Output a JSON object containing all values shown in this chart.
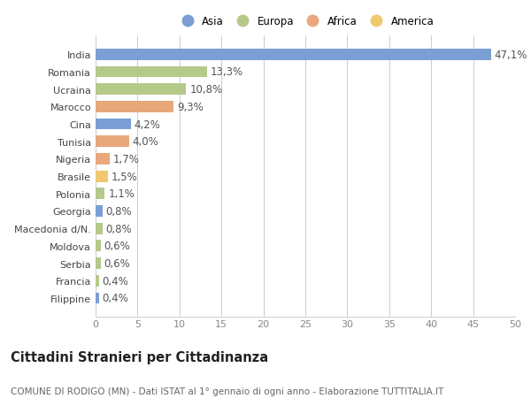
{
  "categories": [
    "India",
    "Romania",
    "Ucraina",
    "Marocco",
    "Cina",
    "Tunisia",
    "Nigeria",
    "Brasile",
    "Polonia",
    "Georgia",
    "Macedonia d/N.",
    "Moldova",
    "Serbia",
    "Francia",
    "Filippine"
  ],
  "values": [
    47.1,
    13.3,
    10.8,
    9.3,
    4.2,
    4.0,
    1.7,
    1.5,
    1.1,
    0.8,
    0.8,
    0.6,
    0.6,
    0.4,
    0.4
  ],
  "labels": [
    "47,1%",
    "13,3%",
    "10,8%",
    "9,3%",
    "4,2%",
    "4,0%",
    "1,7%",
    "1,5%",
    "1,1%",
    "0,8%",
    "0,8%",
    "0,6%",
    "0,6%",
    "0,4%",
    "0,4%"
  ],
  "colors": [
    "#7b9fd4",
    "#b5c98a",
    "#b5c98a",
    "#e8a87c",
    "#7b9fd4",
    "#e8a87c",
    "#e8a87c",
    "#f0c96e",
    "#b5c98a",
    "#7b9fd4",
    "#b5c98a",
    "#b5c98a",
    "#b5c98a",
    "#b5c98a",
    "#7b9fd4"
  ],
  "legend_labels": [
    "Asia",
    "Europa",
    "Africa",
    "America"
  ],
  "legend_colors": [
    "#7b9fd4",
    "#b5c98a",
    "#e8a87c",
    "#f0c96e"
  ],
  "title": "Cittadini Stranieri per Cittadinanza",
  "subtitle": "COMUNE DI RODIGO (MN) - Dati ISTAT al 1° gennaio di ogni anno - Elaborazione TUTTITALIA.IT",
  "xlim": [
    0,
    50
  ],
  "xticks": [
    0,
    5,
    10,
    15,
    20,
    25,
    30,
    35,
    40,
    45,
    50
  ],
  "bg_color": "#ffffff",
  "grid_color": "#cccccc",
  "bar_height": 0.65,
  "label_fontsize": 8.5,
  "tick_fontsize": 8,
  "title_fontsize": 10.5,
  "subtitle_fontsize": 7.5
}
